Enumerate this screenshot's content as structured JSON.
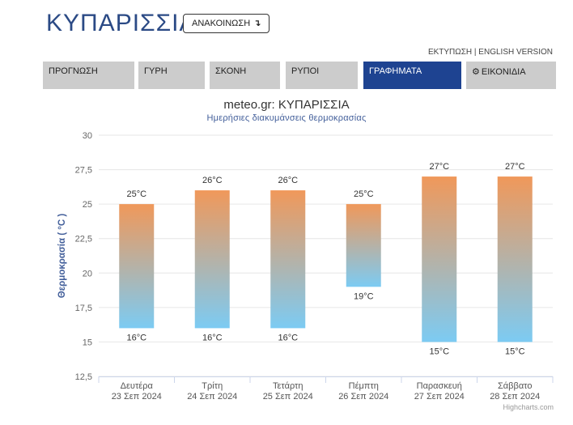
{
  "header": {
    "city": "ΚΥΠΑΡΙΣΣΙΑ",
    "announce_label": "ΑΝΑΚΟΙΝΩΣΗ",
    "announce_arrow": "↴",
    "links": "ΕΚΤΥΠΩΣΗ | ENGLISH VERSION"
  },
  "tabs": [
    {
      "label": "ΠΡΟΓΝΩΣΗ",
      "active": false
    },
    {
      "label": "ΓΥΡΗ",
      "active": false
    },
    {
      "label": "ΣΚΟΝΗ",
      "active": false
    },
    {
      "label": "ΡΥΠΟΙ",
      "active": false
    },
    {
      "label": "ΓΡΑΦΗΜΑΤΑ",
      "active": true
    },
    {
      "label": "ΕΙΚΟΝΙΔΙΑ",
      "active": false,
      "icon": "gear-icon"
    }
  ],
  "chart_data": {
    "type": "bar",
    "subtype": "columnrange",
    "title": "meteo.gr: ΚΥΠΑΡΙΣΣΙΑ",
    "subtitle": "Ημερήσιες διακυμάνσεις θερμοκρασίας",
    "ylabel": "Θερμοκρασία ( °C )",
    "xlabel": "",
    "ylim": [
      12.5,
      30
    ],
    "yticks": [
      "12,5",
      "15",
      "17,5",
      "20",
      "22,5",
      "25",
      "27,5",
      "30"
    ],
    "grid": true,
    "categories": [
      {
        "day": "Δευτέρα",
        "date": "23 Σεπ 2024"
      },
      {
        "day": "Τρίτη",
        "date": "24 Σεπ 2024"
      },
      {
        "day": "Τετάρτη",
        "date": "25 Σεπ 2024"
      },
      {
        "day": "Πέμπτη",
        "date": "26 Σεπ 2024"
      },
      {
        "day": "Παρασκευή",
        "date": "27 Σεπ 2024"
      },
      {
        "day": "Σάββατο",
        "date": "28 Σεπ 2024"
      }
    ],
    "low": [
      16,
      16,
      16,
      19,
      15,
      15
    ],
    "high": [
      25,
      26,
      26,
      25,
      27,
      27
    ],
    "low_labels": [
      "16°C",
      "16°C",
      "16°C",
      "19°C",
      "15°C",
      "15°C"
    ],
    "high_labels": [
      "25°C",
      "26°C",
      "26°C",
      "25°C",
      "27°C",
      "27°C"
    ],
    "colors": {
      "warm": "#f0985a",
      "cool": "#7ccbf3",
      "grid": "#e6e6e6",
      "axis": "#ccd6eb"
    }
  },
  "credits": "Highcharts.com"
}
